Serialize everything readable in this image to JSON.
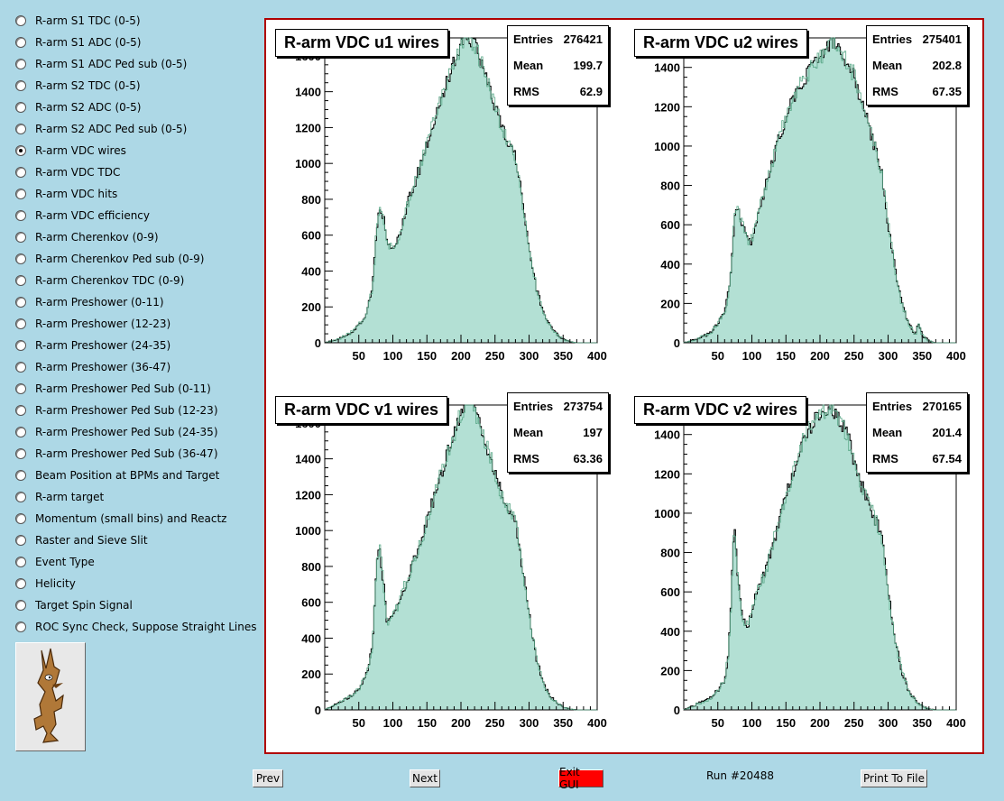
{
  "menu": {
    "selected": 6,
    "items": [
      "R-arm S1 TDC (0-5)",
      "R-arm S1 ADC (0-5)",
      "R-arm S1 ADC Ped sub (0-5)",
      "R-arm S2 TDC (0-5)",
      "R-arm S2 ADC (0-5)",
      "R-arm S2 ADC Ped sub (0-5)",
      "R-arm VDC wires",
      "R-arm VDC TDC",
      "R-arm VDC hits",
      "R-arm VDC efficiency",
      "R-arm Cherenkov (0-9)",
      "R-arm Cherenkov Ped sub (0-9)",
      "R-arm Cherenkov TDC (0-9)",
      "R-arm Preshower (0-11)",
      "R-arm Preshower (12-23)",
      "R-arm Preshower (24-35)",
      "R-arm Preshower (36-47)",
      "R-arm Preshower Ped Sub (0-11)",
      "R-arm Preshower Ped Sub (12-23)",
      "R-arm Preshower Ped Sub (24-35)",
      "R-arm Preshower Ped Sub (36-47)",
      "Beam Position at BPMs and Target",
      "R-arm target",
      "Momentum (small bins) and Reactz",
      "Raster and Sieve Slit",
      "Event Type",
      "Helicity",
      "Target Spin Signal",
      "ROC Sync Check, Suppose Straight Lines"
    ]
  },
  "logo": {
    "icon": "coyote-logo-icon"
  },
  "buttons": {
    "prev": "Prev",
    "next": "Next",
    "exit": "Exit GUI",
    "print": "Print To File",
    "exit_color": "#ff0000"
  },
  "run_label": "Run #20488",
  "colors": {
    "frame": "#b00000",
    "fill": "#b3e0d4",
    "outline": "#000000",
    "overlay": "#5aa888"
  },
  "chart_data": [
    {
      "type": "histogram",
      "title": "R-arm VDC u1 wires",
      "stats": {
        "entries_label": "Entries",
        "entries": "276421",
        "mean_label": "Mean",
        "mean": "199.7",
        "rms_label": "RMS",
        "rms": "62.9"
      },
      "xlim": [
        0,
        400
      ],
      "ylim": [
        0,
        1700
      ],
      "xticks": [
        50,
        100,
        150,
        200,
        250,
        300,
        350,
        400
      ],
      "yticks": [
        0,
        200,
        400,
        600,
        800,
        1000,
        1200,
        1400,
        1600
      ],
      "x": [
        0,
        20,
        40,
        50,
        60,
        70,
        76,
        80,
        86,
        92,
        100,
        110,
        120,
        140,
        160,
        180,
        200,
        210,
        220,
        240,
        260,
        280,
        290,
        300,
        310,
        320,
        330,
        340,
        350,
        360,
        370,
        380
      ],
      "y": [
        0,
        20,
        60,
        100,
        150,
        300,
        620,
        750,
        700,
        560,
        520,
        600,
        760,
        980,
        1230,
        1460,
        1660,
        1720,
        1660,
        1450,
        1200,
        1050,
        800,
        540,
        320,
        180,
        100,
        50,
        20,
        5,
        0,
        0
      ]
    },
    {
      "type": "histogram",
      "title": "R-arm VDC u2 wires",
      "stats": {
        "entries_label": "Entries",
        "entries": "275401",
        "mean_label": "Mean",
        "mean": "202.8",
        "rms_label": "RMS",
        "rms": "67.35"
      },
      "xlim": [
        0,
        400
      ],
      "ylim": [
        0,
        1550
      ],
      "xticks": [
        50,
        100,
        150,
        200,
        250,
        300,
        350,
        400
      ],
      "yticks": [
        0,
        200,
        400,
        600,
        800,
        1000,
        1200,
        1400
      ],
      "x": [
        0,
        20,
        40,
        50,
        60,
        68,
        74,
        80,
        88,
        96,
        104,
        114,
        130,
        150,
        170,
        190,
        210,
        220,
        230,
        250,
        270,
        280,
        290,
        300,
        310,
        320,
        330,
        340,
        345,
        350,
        360,
        370,
        380
      ],
      "y": [
        0,
        20,
        50,
        100,
        150,
        300,
        620,
        680,
        580,
        500,
        560,
        720,
        920,
        1150,
        1300,
        1420,
        1500,
        1540,
        1480,
        1360,
        1120,
        1000,
        880,
        600,
        380,
        200,
        100,
        40,
        100,
        40,
        10,
        0,
        0
      ]
    },
    {
      "type": "histogram",
      "title": "R-arm VDC v1 wires",
      "stats": {
        "entries_label": "Entries",
        "entries": "273754",
        "mean_label": "Mean",
        "mean": "197",
        "rms_label": "RMS",
        "rms": "63.36"
      },
      "xlim": [
        0,
        400
      ],
      "ylim": [
        0,
        1700
      ],
      "xticks": [
        50,
        100,
        150,
        200,
        250,
        300,
        350,
        400
      ],
      "yticks": [
        0,
        200,
        400,
        600,
        800,
        1000,
        1200,
        1400,
        1600
      ],
      "x": [
        0,
        20,
        40,
        50,
        60,
        70,
        76,
        80,
        86,
        92,
        100,
        110,
        120,
        140,
        160,
        180,
        200,
        210,
        220,
        240,
        260,
        280,
        290,
        300,
        310,
        320,
        330,
        340,
        350,
        360,
        370,
        380
      ],
      "y": [
        0,
        40,
        80,
        120,
        180,
        350,
        800,
        920,
        720,
        470,
        520,
        600,
        720,
        920,
        1180,
        1430,
        1650,
        1720,
        1680,
        1450,
        1200,
        1060,
        800,
        540,
        300,
        160,
        80,
        40,
        15,
        5,
        0,
        0
      ]
    },
    {
      "type": "histogram",
      "title": "R-arm VDC v2 wires",
      "stats": {
        "entries_label": "Entries",
        "entries": "270165",
        "mean_label": "Mean",
        "mean": "201.4",
        "rms_label": "RMS",
        "rms": "67.54"
      },
      "xlim": [
        0,
        400
      ],
      "ylim": [
        0,
        1550
      ],
      "xticks": [
        50,
        100,
        150,
        200,
        250,
        300,
        350,
        400
      ],
      "yticks": [
        0,
        200,
        400,
        600,
        800,
        1000,
        1200,
        1400
      ],
      "x": [
        0,
        20,
        40,
        50,
        60,
        66,
        70,
        74,
        80,
        86,
        94,
        104,
        120,
        140,
        160,
        180,
        200,
        210,
        220,
        240,
        260,
        280,
        290,
        300,
        310,
        320,
        330,
        340,
        350,
        360,
        370,
        380
      ],
      "y": [
        0,
        30,
        60,
        100,
        150,
        300,
        600,
        960,
        650,
        450,
        430,
        560,
        700,
        960,
        1200,
        1420,
        1500,
        1540,
        1520,
        1400,
        1150,
        980,
        900,
        600,
        360,
        200,
        100,
        50,
        20,
        5,
        0,
        0
      ]
    }
  ]
}
